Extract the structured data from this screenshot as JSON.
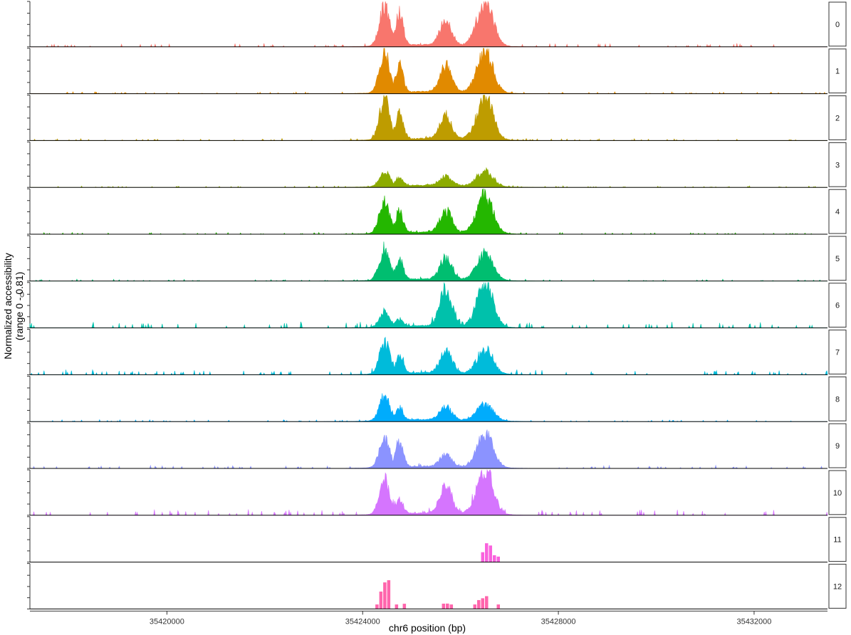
{
  "chart_data": {
    "type": "area",
    "xlabel": "chr6 position (bp)",
    "ylabel_line1": "Normalized accessibility",
    "ylabel_line2": "(range 0 - 0.81)",
    "xlim": [
      35417200,
      35433500
    ],
    "ylim": [
      0,
      0.81
    ],
    "x_ticks": [
      35420000,
      35424000,
      35428000,
      35432000
    ],
    "x_tick_labels": [
      "35420000",
      "35424000",
      "35428000",
      "35432000"
    ],
    "panel_y_ticks": [
      0,
      0.2,
      0.4,
      0.6,
      0.81
    ],
    "panel_y_tick_label": "0",
    "panel_y_tick_label_panel": "6",
    "peaks_bp": [
      35424450,
      35424750,
      35425700,
      35426500
    ],
    "series": [
      {
        "name": "0",
        "color": "#F8766D",
        "heights": [
          0.68,
          0.56,
          0.42,
          0.76
        ],
        "background": 0.035,
        "style": "area"
      },
      {
        "name": "1",
        "color": "#E18A00",
        "heights": [
          0.68,
          0.47,
          0.45,
          0.71
        ],
        "background": 0.02,
        "style": "area"
      },
      {
        "name": "2",
        "color": "#BE9C00",
        "heights": [
          0.7,
          0.47,
          0.4,
          0.73
        ],
        "background": 0.02,
        "style": "area"
      },
      {
        "name": "3",
        "color": "#8CAB00",
        "heights": [
          0.25,
          0.15,
          0.16,
          0.28
        ],
        "background": 0.015,
        "style": "area"
      },
      {
        "name": "4",
        "color": "#24B700",
        "heights": [
          0.55,
          0.38,
          0.38,
          0.66
        ],
        "background": 0.02,
        "style": "area"
      },
      {
        "name": "5",
        "color": "#00BE70",
        "heights": [
          0.57,
          0.36,
          0.38,
          0.44
        ],
        "background": 0.02,
        "style": "area"
      },
      {
        "name": "6",
        "color": "#00C1AB",
        "heights": [
          0.25,
          0.13,
          0.68,
          0.79
        ],
        "background": 0.06,
        "style": "area"
      },
      {
        "name": "7",
        "color": "#00BBDA",
        "heights": [
          0.55,
          0.3,
          0.4,
          0.42
        ],
        "background": 0.05,
        "style": "area"
      },
      {
        "name": "8",
        "color": "#00ACFC",
        "heights": [
          0.42,
          0.22,
          0.22,
          0.28
        ],
        "background": 0.02,
        "style": "area"
      },
      {
        "name": "9",
        "color": "#8B93FF",
        "heights": [
          0.5,
          0.45,
          0.2,
          0.6
        ],
        "background": 0.03,
        "style": "area"
      },
      {
        "name": "10",
        "color": "#D575FE",
        "heights": [
          0.6,
          0.25,
          0.5,
          0.81
        ],
        "background": 0.06,
        "style": "area"
      },
      {
        "name": "11",
        "color": "#F962DD",
        "heights": [
          0.0,
          0.0,
          0.0,
          0.3
        ],
        "background": 0.0,
        "style": "bars"
      },
      {
        "name": "12",
        "color": "#FF65AC",
        "heights": [
          0.45,
          0.15,
          0.1,
          0.3
        ],
        "background": 0.0,
        "style": "bars"
      }
    ]
  }
}
